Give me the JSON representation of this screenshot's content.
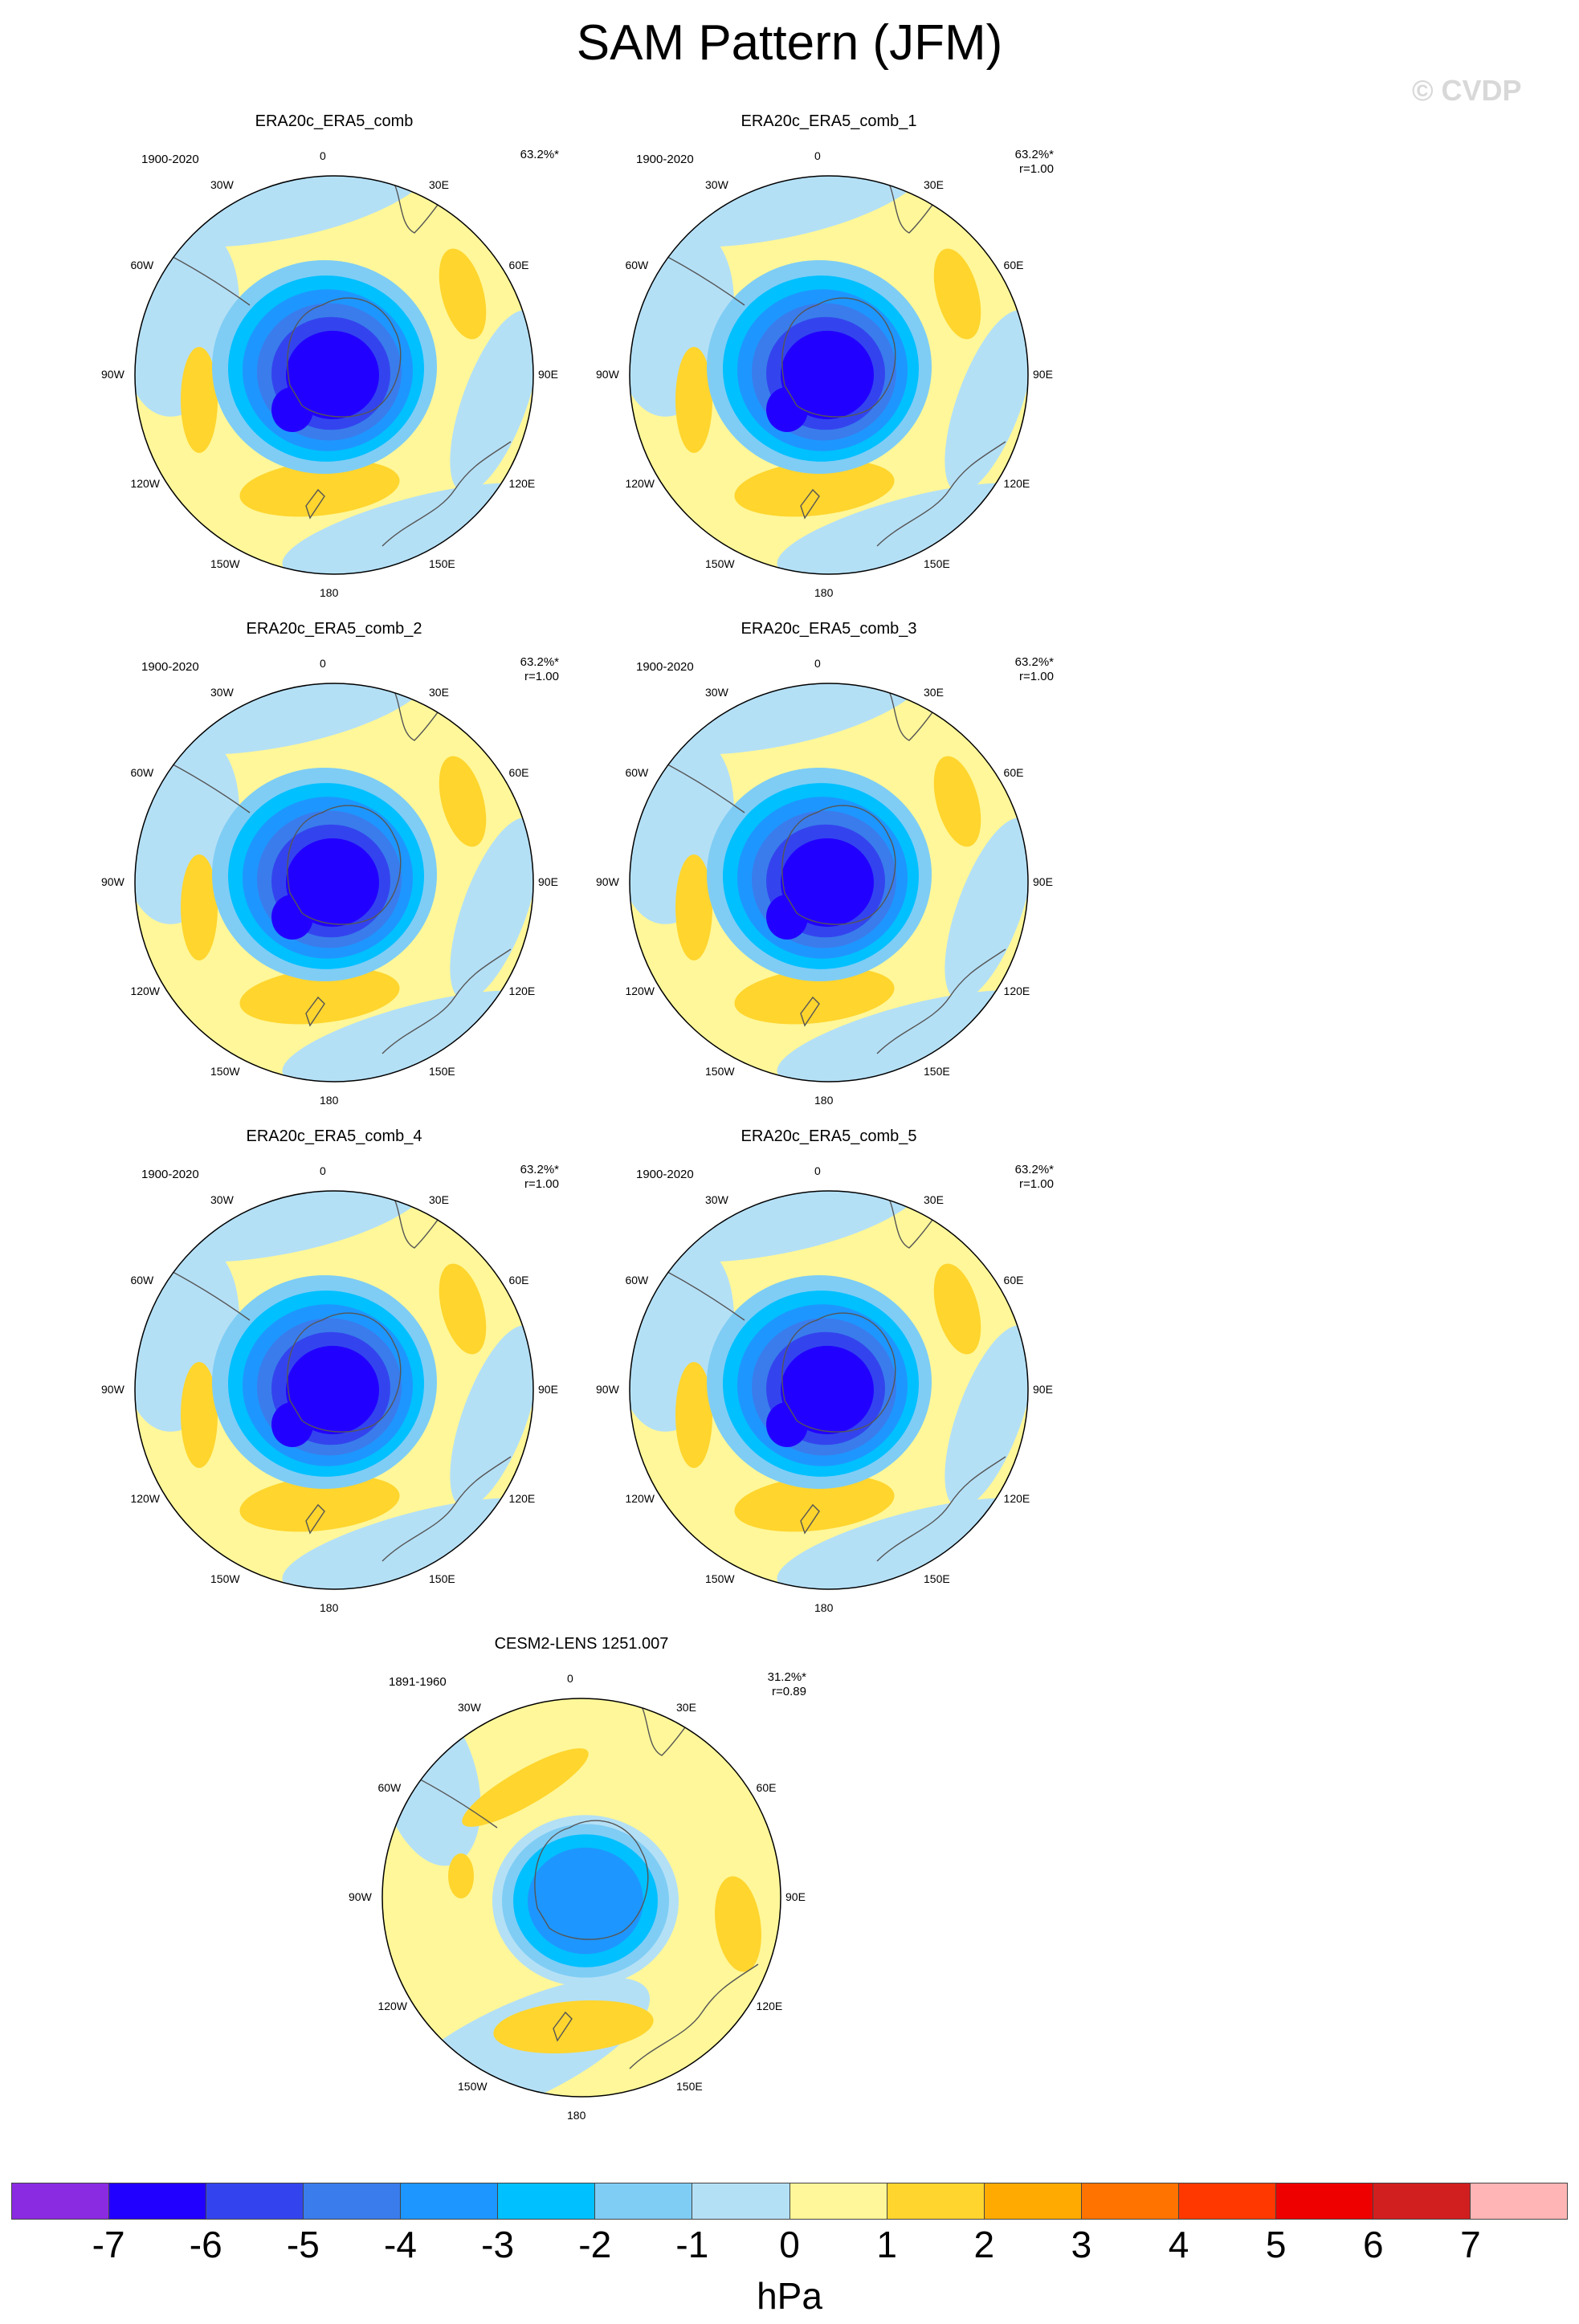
{
  "title": "SAM Pattern (JFM)",
  "watermark": "© CVDP",
  "units": "hPa",
  "lon_labels": [
    "0",
    "30E",
    "60E",
    "90E",
    "120E",
    "150E",
    "180",
    "150W",
    "120W",
    "90W",
    "60W",
    "30W"
  ],
  "colors": {
    "c_m7": "#8a2be2",
    "c_m6": "#2200ff",
    "c_m5": "#3344ee",
    "c_m4": "#3a7cec",
    "c_m3": "#1e96ff",
    "c_m2": "#00c0ff",
    "c_m1": "#7fcdf5",
    "c_0": "#b4e0f6",
    "c_p0": "#fff799",
    "c_p1": "#ffd52e",
    "c_p2": "#ffaa00",
    "c_p3": "#ff7300",
    "c_p4": "#ff3800",
    "c_p5": "#ee0000",
    "c_p6": "#d11f1f",
    "c_p7": "#ffb5b5"
  },
  "colorbar": {
    "ticks": [
      "-7",
      "-6",
      "-5",
      "-4",
      "-3",
      "-2",
      "-1",
      "0",
      "1",
      "2",
      "3",
      "4",
      "5",
      "6",
      "7"
    ],
    "colors": [
      "#8a2be2",
      "#2200ff",
      "#3344ee",
      "#3a7cec",
      "#1e96ff",
      "#00c0ff",
      "#7fcdf5",
      "#b4e0f6",
      "#fff799",
      "#ffd52e",
      "#ffaa00",
      "#ff7300",
      "#ff3800",
      "#ee0000",
      "#d11f1f",
      "#ffb5b5"
    ]
  },
  "panels": [
    {
      "title": "ERA20c_ERA5_comb",
      "period": "1900-2020",
      "pct": "63.2%*",
      "r": "",
      "model": "obs"
    },
    {
      "title": "ERA20c_ERA5_comb_1",
      "period": "1900-2020",
      "pct": "63.2%*",
      "r": "r=1.00",
      "model": "obs"
    },
    {
      "title": "ERA20c_ERA5_comb_2",
      "period": "1900-2020",
      "pct": "63.2%*",
      "r": "r=1.00",
      "model": "obs"
    },
    {
      "title": "ERA20c_ERA5_comb_3",
      "period": "1900-2020",
      "pct": "63.2%*",
      "r": "r=1.00",
      "model": "obs"
    },
    {
      "title": "ERA20c_ERA5_comb_4",
      "period": "1900-2020",
      "pct": "63.2%*",
      "r": "r=1.00",
      "model": "obs"
    },
    {
      "title": "ERA20c_ERA5_comb_5",
      "period": "1900-2020",
      "pct": "63.2%*",
      "r": "r=1.00",
      "model": "obs"
    },
    {
      "title": "CESM2-LENS 1251.007",
      "period": "1891-1960",
      "pct": "31.2%*",
      "r": "r=0.89",
      "model": "model"
    }
  ]
}
